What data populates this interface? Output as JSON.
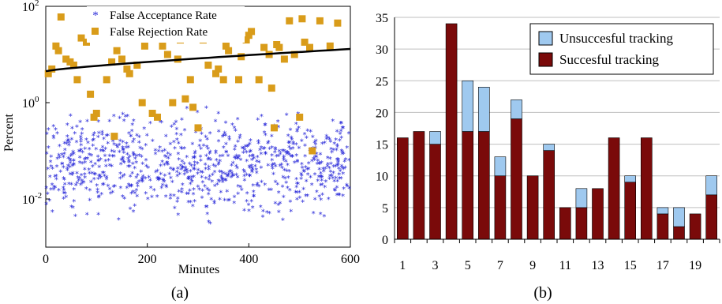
{
  "chart_data": [
    {
      "type": "scatter",
      "caption": "(a)",
      "xlabel": "Minutes",
      "ylabel": "Percent",
      "xlim": [
        0,
        600
      ],
      "ylim": [
        0.001,
        100
      ],
      "yscale": "log",
      "xticks": [
        0,
        200,
        400,
        600
      ],
      "yticks": [
        {
          "value": 0.01,
          "base": "10",
          "exp": "-2"
        },
        {
          "value": 1,
          "base": "10",
          "exp": "0"
        },
        {
          "value": 100,
          "base": "10",
          "exp": "2"
        }
      ],
      "grid": false,
      "legend_position": "top-left",
      "series": [
        {
          "name": "False Acceptance Rate",
          "marker": "star",
          "color": "#2b2bd9",
          "n_points": 900,
          "y_range": [
            0.002,
            1.2
          ],
          "description_values": "dense cloud between about 0.002 and 1 percent over 0-600 minutes"
        },
        {
          "name": "False Rejection Rate",
          "marker": "square",
          "color": "#d99c1a",
          "x": [
            5,
            12,
            20,
            25,
            30,
            40,
            48,
            55,
            62,
            70,
            80,
            88,
            95,
            100,
            105,
            120,
            130,
            135,
            140,
            150,
            160,
            165,
            180,
            190,
            195,
            210,
            220,
            225,
            230,
            240,
            250,
            260,
            265,
            275,
            285,
            290,
            300,
            310,
            320,
            335,
            340,
            350,
            355,
            360,
            365,
            380,
            385,
            395,
            400,
            405,
            420,
            430,
            440,
            445,
            450,
            455,
            460,
            470,
            480,
            490,
            500,
            505,
            510,
            520,
            525,
            540,
            560,
            575
          ],
          "y": [
            4,
            5,
            15,
            12,
            60,
            8,
            7,
            6,
            3,
            22,
            18,
            1.5,
            0.5,
            0.6,
            25,
            3,
            7,
            0.2,
            12,
            8,
            5,
            4,
            6,
            1,
            15,
            0.6,
            0.5,
            30,
            15,
            10,
            1,
            8,
            20,
            1.2,
            3,
            0.8,
            0.3,
            20,
            6,
            4,
            5,
            3,
            15,
            12,
            35,
            3,
            9,
            20,
            25,
            30,
            3,
            14,
            10,
            2,
            0.3,
            16,
            14,
            8,
            50,
            10,
            0.5,
            55,
            18,
            14,
            0.1,
            50,
            15,
            45
          ]
        }
      ],
      "trend_line": {
        "x": [
          0,
          600
        ],
        "y": [
          4.5,
          13
        ]
      }
    },
    {
      "type": "bar",
      "stacked": true,
      "caption": "(b)",
      "xlabel": "",
      "ylabel": "",
      "ylim": [
        0,
        35
      ],
      "yticks": [
        0,
        5,
        10,
        15,
        20,
        25,
        30,
        35
      ],
      "categories": [
        "1",
        "2",
        "3",
        "4",
        "5",
        "6",
        "7",
        "8",
        "9",
        "10",
        "11",
        "12",
        "13",
        "14",
        "15",
        "16",
        "17",
        "18",
        "19",
        "20"
      ],
      "xtick_labels_shown": [
        "1",
        "3",
        "5",
        "7",
        "9",
        "11",
        "13",
        "15",
        "17",
        "19"
      ],
      "legend_position": "top-right",
      "series": [
        {
          "name": "Succesful tracking",
          "color": "#7a0a0a",
          "values": [
            16,
            17,
            15,
            34,
            17,
            17,
            10,
            19,
            10,
            14,
            5,
            5,
            8,
            16,
            9,
            16,
            4,
            2,
            4,
            7
          ]
        },
        {
          "name": "Unsuccesful tracking",
          "color": "#9fc9ef",
          "values": [
            0,
            0,
            2,
            0,
            8,
            7,
            3,
            3,
            0,
            1,
            0,
            3,
            0,
            0,
            1,
            0,
            1,
            3,
            0,
            3
          ]
        }
      ]
    }
  ]
}
